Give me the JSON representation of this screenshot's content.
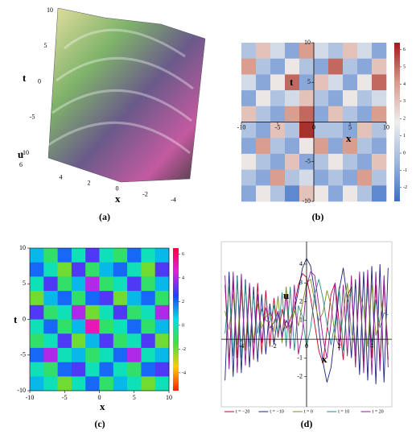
{
  "chart_data": [
    {
      "type": "surface",
      "caption": "(a)",
      "xlabel": "x",
      "ylabel": "t",
      "zlabel": "u",
      "xlim": [
        5,
        -5
      ],
      "xticks": [
        4,
        2,
        0,
        -2,
        -4
      ],
      "ylim": [
        -10,
        10
      ],
      "yticks": [
        10,
        5,
        0,
        -5,
        -10
      ],
      "zticks": [
        6
      ]
    },
    {
      "type": "contour",
      "caption": "(b)",
      "xlabel": "x",
      "ylabel": "t",
      "xlim": [
        -10,
        10
      ],
      "xticks": [
        -10,
        -5,
        0,
        5,
        10
      ],
      "ylim": [
        -10,
        10
      ],
      "yticks": [
        10,
        5,
        -5,
        -10
      ],
      "x": [
        -9,
        -7,
        -5,
        -3,
        -1,
        1,
        3,
        5,
        7,
        9
      ],
      "t": [
        9,
        7,
        5,
        3,
        1,
        -1,
        -3,
        -5,
        -7,
        -9
      ],
      "z": [
        [
          0,
          3,
          1,
          -1,
          4,
          1,
          0,
          3,
          1,
          -1
        ],
        [
          4,
          0,
          -1,
          2,
          0,
          -1,
          5,
          0,
          -1,
          3
        ],
        [
          1,
          -1,
          2,
          5,
          -1,
          3,
          1,
          -1,
          2,
          5
        ],
        [
          -1,
          2,
          0,
          1,
          3,
          0,
          -1,
          2,
          0,
          1
        ],
        [
          3,
          0,
          -1,
          4,
          5,
          -1,
          3,
          0,
          -1,
          4
        ],
        [
          0,
          -1,
          3,
          0,
          6,
          0,
          0,
          -1,
          3,
          0
        ],
        [
          -1,
          4,
          0,
          -1,
          2,
          4,
          -1,
          4,
          0,
          -1
        ],
        [
          2,
          0,
          -1,
          3,
          -1,
          0,
          2,
          0,
          -1,
          3
        ],
        [
          0,
          -1,
          4,
          0,
          1,
          -1,
          0,
          -1,
          4,
          0
        ],
        [
          -1,
          2,
          0,
          -2,
          3,
          2,
          -1,
          2,
          0,
          -2
        ]
      ],
      "zlim": [
        -2.8,
        6.4
      ],
      "zticks": [
        6,
        5,
        4,
        3,
        2,
        1,
        0,
        -1,
        -2
      ],
      "colormap": [
        "#3b6fc9",
        "#9fb8de",
        "#eeeeee",
        "#d99a8a",
        "#9e1b1b"
      ]
    },
    {
      "type": "heatmap",
      "caption": "(c)",
      "xlabel": "x",
      "ylabel": "t",
      "xlim": [
        -10,
        10
      ],
      "xticks": [
        -10,
        -5,
        0,
        5,
        10
      ],
      "ylim": [
        -10,
        10
      ],
      "yticks": [
        10,
        5,
        0,
        -5,
        -10
      ],
      "x": [
        -9,
        -7,
        -5,
        -3,
        -1,
        1,
        3,
        5,
        7,
        9
      ],
      "t": [
        9,
        7,
        5,
        3,
        1,
        -1,
        -3,
        -5,
        -7,
        -9
      ],
      "z": [
        [
          1,
          -1,
          2,
          0,
          3,
          0,
          -1,
          2,
          0,
          1
        ],
        [
          2,
          0,
          -2,
          3,
          -1,
          1,
          2,
          0,
          -2,
          3
        ],
        [
          0,
          3,
          -1,
          1,
          4,
          -1,
          0,
          3,
          -1,
          1
        ],
        [
          -2,
          1,
          2,
          -1,
          2,
          3,
          -2,
          1,
          2,
          -1
        ],
        [
          3,
          -1,
          0,
          4,
          -2,
          0,
          3,
          -1,
          0,
          4
        ],
        [
          0,
          2,
          -1,
          1,
          5,
          -1,
          0,
          2,
          -1,
          1
        ],
        [
          -1,
          0,
          3,
          -2,
          1,
          3,
          -1,
          0,
          3,
          -2
        ],
        [
          2,
          4,
          0,
          1,
          -1,
          0,
          2,
          4,
          0,
          1
        ],
        [
          0,
          -1,
          2,
          3,
          0,
          2,
          0,
          -1,
          2,
          3
        ],
        [
          1,
          0,
          -2,
          0,
          2,
          -1,
          1,
          0,
          -2,
          0
        ]
      ],
      "zlim": [
        -5.5,
        6.5
      ],
      "zticks": [
        6,
        4,
        2,
        0,
        -2,
        -4
      ],
      "colormap": [
        "#ff2000",
        "#ffcc00",
        "#40e040",
        "#00e0e0",
        "#2040ff",
        "#e020e0",
        "#ff0040"
      ]
    },
    {
      "type": "line",
      "caption": "(d)",
      "xlabel": "x",
      "ylabel": "u",
      "xlim": [
        -5.23,
        5.23
      ],
      "xticks": [
        -4,
        -2,
        0,
        2,
        4
      ],
      "ylim": [
        -3.6,
        5.2
      ],
      "yticks": [
        -2,
        -1,
        1,
        2,
        3,
        4
      ],
      "x": [
        -5,
        -4.75,
        -4.5,
        -4.25,
        -4,
        -3.75,
        -3.5,
        -3.25,
        -3,
        -2.75,
        -2.5,
        -2.25,
        -2,
        -1.75,
        -1.5,
        -1.25,
        -1,
        -0.75,
        -0.5,
        -0.25,
        0,
        0.25,
        0.5,
        0.75,
        1,
        1.25,
        1.5,
        1.75,
        2,
        2.25,
        2.5,
        2.75,
        3,
        3.25,
        3.5,
        3.75,
        4,
        4.25,
        4.5,
        4.75,
        5
      ],
      "series": [
        {
          "name": "t = −20",
          "color": "#c0002a",
          "values": [
            2.9,
            -1.2,
            3.1,
            -1.0,
            2.7,
            -0.6,
            2.9,
            -1.1,
            3.0,
            -0.8,
            2.6,
            -0.4,
            2.2,
            0.1,
            1.6,
            0.6,
            1.0,
            1.8,
            2.9,
            3.5,
            3.3,
            2.2,
            0.8,
            -0.6,
            -1.3,
            0.5,
            2.4,
            3.0,
            0.9,
            -1.1,
            2.3,
            2.8,
            -0.9,
            3.1,
            -1.2,
            3.2,
            -1.0,
            2.9,
            -1.2,
            3.1,
            -1.1
          ]
        },
        {
          "name": "t = −10",
          "color": "#1a237e",
          "values": [
            -2.2,
            3.6,
            -2.0,
            3.4,
            -1.8,
            3.2,
            -1.5,
            2.8,
            -1.2,
            2.4,
            -0.8,
            1.9,
            -0.3,
            1.4,
            0.2,
            1.0,
            0.6,
            1.5,
            2.6,
            3.8,
            4.3,
            3.9,
            2.5,
            0.6,
            -1.2,
            -2.3,
            -1.5,
            0.4,
            2.6,
            3.8,
            2.1,
            -1.0,
            3.2,
            -1.9,
            3.6,
            -2.2,
            3.9,
            -2.4,
            4.0,
            -2.3,
            3.8
          ]
        },
        {
          "name": "t = 0",
          "color": "#7a8c1e",
          "values": [
            1.5,
            0.5,
            2.4,
            -0.3,
            2.9,
            -0.6,
            2.5,
            -0.2,
            1.9,
            0.6,
            1.2,
            1.4,
            0.4,
            2.3,
            -0.2,
            2.8,
            0.3,
            1.6,
            0.7,
            1.9,
            3.0,
            3.2,
            2.0,
            1.0,
            1.4,
            2.6,
            1.8,
            0.2,
            -0.4,
            1.4,
            3.0,
            0.4,
            -0.5,
            2.6,
            1.6,
            -0.4,
            2.9,
            0.2,
            1.0,
            2.6,
            -0.3
          ]
        },
        {
          "name": "t = 10",
          "color": "#2a8a8a",
          "values": [
            0.3,
            2.8,
            -0.9,
            3.3,
            -1.0,
            3.0,
            -0.4,
            2.4,
            0.3,
            1.6,
            1.0,
            0.9,
            1.8,
            0.2,
            2.5,
            -0.4,
            2.8,
            -0.6,
            1.8,
            1.2,
            -0.4,
            0.6,
            2.4,
            3.2,
            2.2,
            0.8,
            -0.3,
            0.9,
            2.8,
            -0.6,
            1.9,
            2.7,
            -0.8,
            3.1,
            -0.9,
            2.8,
            -0.3,
            2.1,
            0.6,
            1.4,
            1.3
          ]
        },
        {
          "name": "t = 20",
          "color": "#8e1a8e",
          "values": [
            3.4,
            -1.6,
            3.6,
            -1.8,
            3.5,
            -1.4,
            3.0,
            -0.9,
            2.4,
            -0.2,
            1.7,
            0.6,
            0.9,
            1.5,
            0.1,
            2.4,
            -0.5,
            2.9,
            -0.8,
            0.4,
            2.8,
            3.6,
            3.4,
            1.8,
            0.1,
            -1.0,
            0.9,
            3.0,
            -0.6,
            2.9,
            -0.9,
            3.4,
            -1.5,
            3.6,
            -1.8,
            3.7,
            -1.9,
            3.6,
            -1.7,
            3.4,
            -1.5
          ]
        }
      ]
    }
  ]
}
